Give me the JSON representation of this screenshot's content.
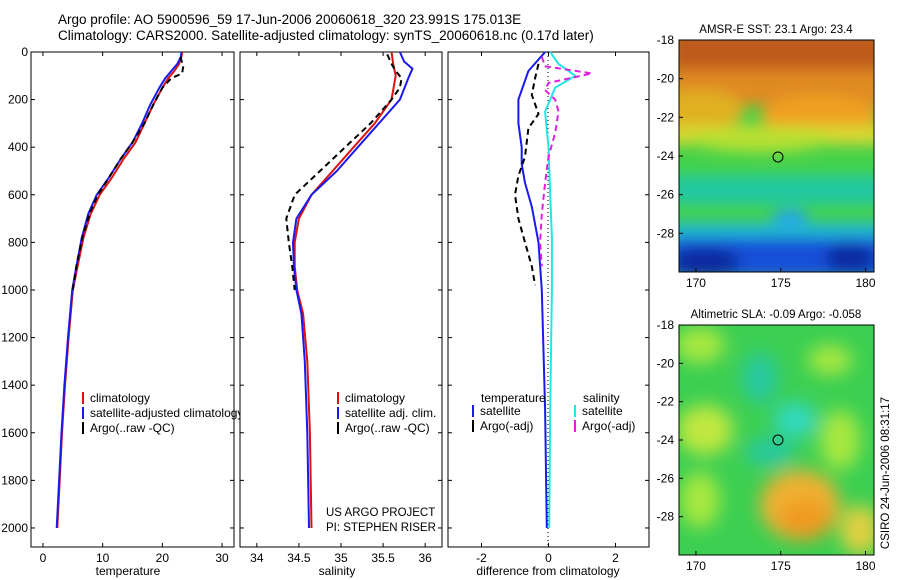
{
  "header": {
    "line1": "Argo profile: AO 5900596_59 17-Jun-2006 20060618_320 23.991S 175.013E",
    "line2": "Climatology: CARS2000. Satellite-adjusted climatology: synTS_20060618.nc (0.17d later)"
  },
  "footer": {
    "project": "US ARGO PROJECT",
    "pi": "PI: STEPHEN RISER",
    "stamp": "CSIRO 24-Jun-2006 08:31:17"
  },
  "colors": {
    "climatology": "#dd1111",
    "satellite": "#1a1aee",
    "argo": "#000000",
    "salinity_satellite": "#22e6e6",
    "salinity_argo": "#e020e0"
  },
  "chart_data": [
    {
      "type": "line",
      "id": "temperature",
      "xlabel": "temperature",
      "ylabel": "",
      "xlim": [
        -2,
        32
      ],
      "ylim": [
        2080,
        0
      ],
      "xticks": [
        0,
        10,
        20,
        30
      ],
      "yticks": [
        0,
        200,
        400,
        600,
        800,
        1000,
        1200,
        1400,
        1600,
        1800,
        2000
      ],
      "legend": [
        "climatology",
        "satellite-adjusted climatology",
        "Argo(..raw -QC)"
      ],
      "series": [
        {
          "name": "climatology",
          "color": "#dd1111",
          "dash": "",
          "points": [
            [
              23.3,
              0
            ],
            [
              23.2,
              20
            ],
            [
              22.8,
              50
            ],
            [
              22.0,
              80
            ],
            [
              21.0,
              110
            ],
            [
              20.0,
              150
            ],
            [
              18.5,
              220
            ],
            [
              17.0,
              300
            ],
            [
              15.5,
              380
            ],
            [
              13.5,
              450
            ],
            [
              11.5,
              530
            ],
            [
              9.5,
              600
            ],
            [
              8.0,
              680
            ],
            [
              6.8,
              780
            ],
            [
              5.8,
              900
            ],
            [
              5.0,
              1000
            ],
            [
              4.3,
              1200
            ],
            [
              3.7,
              1400
            ],
            [
              3.2,
              1600
            ],
            [
              2.8,
              1800
            ],
            [
              2.4,
              2000
            ]
          ]
        },
        {
          "name": "satellite-adjusted climatology",
          "color": "#1a1aee",
          "dash": "",
          "points": [
            [
              23.2,
              0
            ],
            [
              23.1,
              20
            ],
            [
              22.5,
              50
            ],
            [
              21.5,
              80
            ],
            [
              20.5,
              110
            ],
            [
              19.5,
              150
            ],
            [
              18.0,
              220
            ],
            [
              16.6,
              300
            ],
            [
              15.0,
              380
            ],
            [
              13.0,
              450
            ],
            [
              11.0,
              530
            ],
            [
              9.0,
              600
            ],
            [
              7.6,
              680
            ],
            [
              6.5,
              780
            ],
            [
              5.6,
              900
            ],
            [
              4.9,
              1000
            ],
            [
              4.2,
              1200
            ],
            [
              3.6,
              1400
            ],
            [
              3.1,
              1600
            ],
            [
              2.7,
              1800
            ],
            [
              2.3,
              2000
            ]
          ]
        },
        {
          "name": "Argo(..raw -QC)",
          "color": "#000000",
          "dash": "6,4",
          "points": [
            [
              23.0,
              20
            ],
            [
              23.5,
              60
            ],
            [
              23.3,
              90
            ],
            [
              21.5,
              110
            ],
            [
              20.0,
              150
            ],
            [
              18.5,
              220
            ],
            [
              17.0,
              300
            ],
            [
              15.0,
              380
            ],
            [
              13.0,
              450
            ],
            [
              11.0,
              530
            ],
            [
              9.2,
              600
            ],
            [
              7.8,
              680
            ],
            [
              6.6,
              780
            ],
            [
              5.6,
              900
            ],
            [
              5.0,
              1000
            ]
          ]
        }
      ]
    },
    {
      "type": "line",
      "id": "salinity",
      "xlabel": "salinity",
      "xlim": [
        33.8,
        36.2
      ],
      "ylim": [
        2080,
        0
      ],
      "xticks": [
        34,
        34.5,
        35,
        35.5,
        36
      ],
      "legend": [
        "climatology",
        "satellite adj. clim.",
        "Argo(..raw -QC)"
      ],
      "series": [
        {
          "name": "climatology",
          "color": "#dd1111",
          "dash": "",
          "points": [
            [
              35.6,
              0
            ],
            [
              35.62,
              50
            ],
            [
              35.65,
              100
            ],
            [
              35.6,
              200
            ],
            [
              35.4,
              300
            ],
            [
              35.15,
              400
            ],
            [
              34.9,
              500
            ],
            [
              34.65,
              600
            ],
            [
              34.5,
              700
            ],
            [
              34.45,
              800
            ],
            [
              34.45,
              900
            ],
            [
              34.48,
              1000
            ],
            [
              34.55,
              1100
            ],
            [
              34.6,
              1300
            ],
            [
              34.63,
              1600
            ],
            [
              34.65,
              2000
            ]
          ]
        },
        {
          "name": "satellite adj. clim.",
          "color": "#1a1aee",
          "dash": "",
          "points": [
            [
              35.7,
              0
            ],
            [
              35.75,
              40
            ],
            [
              35.85,
              70
            ],
            [
              35.8,
              110
            ],
            [
              35.7,
              200
            ],
            [
              35.45,
              300
            ],
            [
              35.2,
              400
            ],
            [
              34.95,
              500
            ],
            [
              34.65,
              600
            ],
            [
              34.47,
              700
            ],
            [
              34.43,
              800
            ],
            [
              34.44,
              900
            ],
            [
              34.47,
              1000
            ],
            [
              34.53,
              1100
            ],
            [
              34.57,
              1300
            ],
            [
              34.6,
              1600
            ],
            [
              34.62,
              2000
            ]
          ]
        },
        {
          "name": "Argo(..raw -QC)",
          "color": "#000000",
          "dash": "6,4",
          "points": [
            [
              35.55,
              10
            ],
            [
              35.6,
              50
            ],
            [
              35.65,
              80
            ],
            [
              35.72,
              110
            ],
            [
              35.7,
              150
            ],
            [
              35.6,
              200
            ],
            [
              35.35,
              300
            ],
            [
              35.05,
              400
            ],
            [
              34.75,
              500
            ],
            [
              34.45,
              600
            ],
            [
              34.35,
              700
            ],
            [
              34.38,
              800
            ],
            [
              34.42,
              900
            ],
            [
              34.45,
              1000
            ]
          ]
        }
      ]
    },
    {
      "type": "line",
      "id": "difference",
      "xlabel": "difference from climatology",
      "xlim": [
        -3,
        3
      ],
      "ylim": [
        2080,
        0
      ],
      "xticks": [
        -2,
        0,
        2
      ],
      "legend_titles": [
        "temperature",
        "salinity"
      ],
      "legend_temperature": [
        "satellite",
        "Argo(-adj)"
      ],
      "legend_salinity": [
        "satellite",
        "Argo(-adj)"
      ],
      "series": [
        {
          "name": "temperature satellite",
          "color": "#1a1aee",
          "dash": "",
          "points": [
            [
              -0.1,
              0
            ],
            [
              -0.6,
              80
            ],
            [
              -0.9,
              200
            ],
            [
              -0.9,
              300
            ],
            [
              -0.8,
              400
            ],
            [
              -0.8,
              470
            ],
            [
              -0.7,
              550
            ],
            [
              -0.5,
              650
            ],
            [
              -0.3,
              800
            ],
            [
              -0.2,
              1000
            ],
            [
              -0.1,
              1500
            ],
            [
              -0.05,
              2000
            ]
          ]
        },
        {
          "name": "temperature Argo(-adj)",
          "color": "#000000",
          "dash": "6,4",
          "points": [
            [
              -0.3,
              50
            ],
            [
              -0.4,
              110
            ],
            [
              -0.5,
              180
            ],
            [
              -0.3,
              260
            ],
            [
              -0.6,
              320
            ],
            [
              -0.7,
              440
            ],
            [
              -0.9,
              520
            ],
            [
              -1.0,
              600
            ],
            [
              -0.9,
              700
            ],
            [
              -0.7,
              800
            ],
            [
              -0.5,
              900
            ],
            [
              -0.4,
              980
            ]
          ]
        },
        {
          "name": "salinity satellite",
          "color": "#22e6e6",
          "dash": "",
          "points": [
            [
              0.05,
              0
            ],
            [
              0.3,
              50
            ],
            [
              0.8,
              100
            ],
            [
              0.2,
              150
            ],
            [
              -0.1,
              250
            ],
            [
              0,
              400
            ],
            [
              0.05,
              600
            ],
            [
              0.1,
              780
            ],
            [
              0.1,
              1000
            ],
            [
              0.05,
              1500
            ],
            [
              0.02,
              2000
            ]
          ]
        },
        {
          "name": "salinity Argo(-adj)",
          "color": "#e020e0",
          "dash": "6,4",
          "points": [
            [
              -0.2,
              20
            ],
            [
              -0.1,
              60
            ],
            [
              1.3,
              90
            ],
            [
              0,
              130
            ],
            [
              -0.1,
              160
            ],
            [
              0.2,
              200
            ],
            [
              0.3,
              250
            ],
            [
              0.2,
              340
            ],
            [
              0,
              440
            ],
            [
              -0.1,
              550
            ],
            [
              -0.2,
              680
            ],
            [
              -0.25,
              800
            ],
            [
              -0.2,
              900
            ]
          ]
        }
      ]
    },
    {
      "type": "heatmap",
      "id": "sst-map",
      "title": "AMSR-E SST: 23.1 Argo: 23.4",
      "xlim": [
        169,
        180.5
      ],
      "ylim": [
        -30,
        -18
      ],
      "xticks": [
        170,
        175,
        180
      ],
      "yticks": [
        -18,
        -20,
        -22,
        -24,
        -26,
        -28
      ],
      "marker": [
        175,
        -24
      ]
    },
    {
      "type": "heatmap",
      "id": "sla-map",
      "title": "Altimetric SLA: -0.09 Argo: -0.058",
      "xlim": [
        169,
        180.5
      ],
      "ylim": [
        -30,
        -18
      ],
      "xticks": [
        170,
        175,
        180
      ],
      "yticks": [
        -18,
        -20,
        -22,
        -24,
        -26,
        -28
      ],
      "marker": [
        175,
        -24
      ]
    }
  ]
}
